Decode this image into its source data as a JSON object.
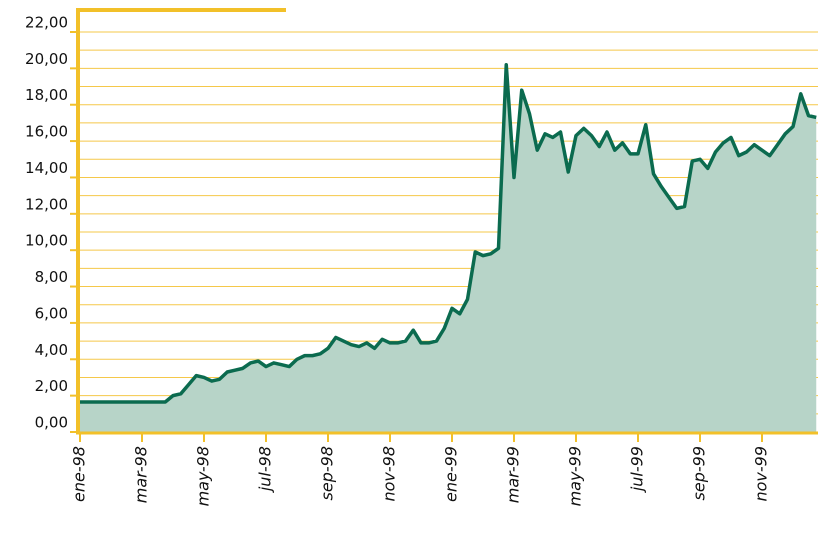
{
  "chart_data": {
    "type": "area",
    "categories": [
      "ene-98",
      null,
      null,
      null,
      null,
      null,
      null,
      null,
      "mar-98",
      null,
      null,
      null,
      null,
      null,
      null,
      null,
      "may-98",
      null,
      null,
      null,
      null,
      null,
      null,
      null,
      "jul-98",
      null,
      null,
      null,
      null,
      null,
      null,
      null,
      "sep-98",
      null,
      null,
      null,
      null,
      null,
      null,
      null,
      "nov-98",
      null,
      null,
      null,
      null,
      null,
      null,
      null,
      "ene-99",
      null,
      null,
      null,
      null,
      null,
      null,
      null,
      "mar-99",
      null,
      null,
      null,
      null,
      null,
      null,
      null,
      "may-99",
      null,
      null,
      null,
      null,
      null,
      null,
      null,
      "jul-99",
      null,
      null,
      null,
      null,
      null,
      null,
      null,
      "sep-99",
      null,
      null,
      null,
      null,
      null,
      null,
      null,
      "nov-99",
      null,
      null,
      null,
      null,
      null,
      null,
      null
    ],
    "values": [
      1.65,
      1.65,
      1.65,
      1.65,
      1.65,
      1.65,
      1.65,
      1.65,
      1.65,
      1.65,
      1.65,
      1.65,
      2.0,
      2.1,
      2.6,
      3.1,
      3.0,
      2.8,
      2.9,
      3.3,
      3.4,
      3.5,
      3.8,
      3.9,
      3.6,
      3.8,
      3.7,
      3.6,
      4.0,
      4.2,
      4.2,
      4.3,
      4.6,
      5.2,
      5.0,
      4.8,
      4.7,
      4.9,
      4.6,
      5.1,
      4.9,
      4.9,
      5.0,
      5.6,
      4.9,
      4.9,
      5.0,
      5.7,
      6.8,
      6.5,
      7.3,
      9.9,
      9.7,
      9.8,
      10.1,
      20.2,
      14.0,
      18.8,
      17.5,
      15.5,
      16.4,
      16.2,
      16.5,
      14.3,
      16.3,
      16.7,
      16.3,
      15.7,
      16.5,
      15.5,
      15.9,
      15.3,
      15.3,
      16.9,
      14.2,
      13.5,
      12.9,
      12.3,
      12.4,
      14.9,
      15.0,
      14.5,
      15.4,
      15.9,
      16.2,
      15.2,
      15.4,
      15.8,
      15.5,
      15.2,
      15.8,
      16.4,
      16.8,
      18.6,
      17.4,
      17.3
    ],
    "color": "#0b6b4f",
    "fill": "#b7d4c8",
    "ylim": [
      0,
      22
    ],
    "yticks": [
      {
        "value": 0,
        "label": "0,00"
      },
      {
        "value": 2,
        "label": "2,00"
      },
      {
        "value": 4,
        "label": "4,00"
      },
      {
        "value": 6,
        "label": "6,00"
      },
      {
        "value": 8,
        "label": "8,00"
      },
      {
        "value": 10,
        "label": "10,00"
      },
      {
        "value": 12,
        "label": "12,00"
      },
      {
        "value": 14,
        "label": "14,00"
      },
      {
        "value": 16,
        "label": "16,00"
      },
      {
        "value": 18,
        "label": "18,00"
      },
      {
        "value": 20,
        "label": "20,00"
      },
      {
        "value": 22,
        "label": "22,00"
      }
    ],
    "minor_yticks": [
      1,
      3,
      5,
      7,
      9,
      11,
      13,
      15,
      17,
      19,
      21
    ],
    "grid": true
  }
}
